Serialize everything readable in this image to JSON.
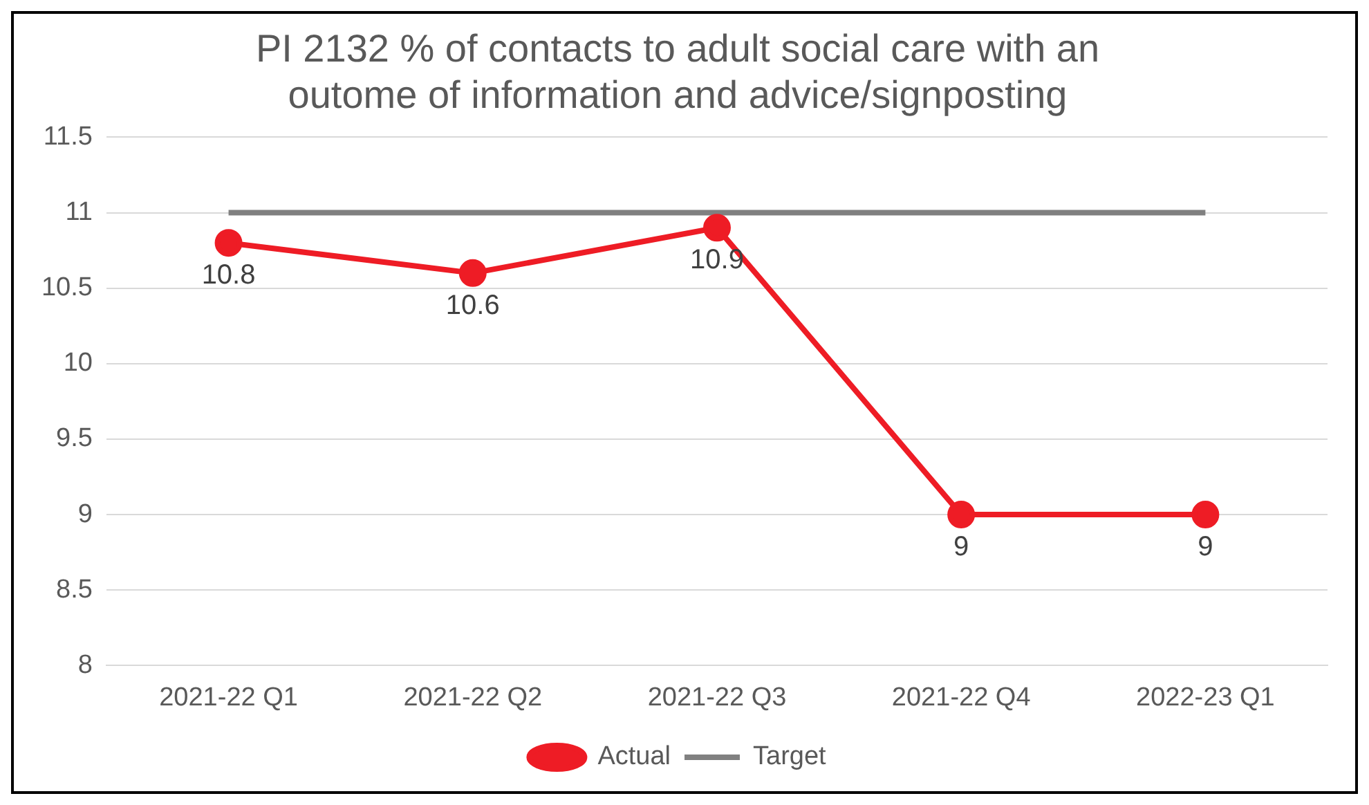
{
  "chart_data": {
    "type": "line",
    "title": "PI 2132 % of contacts to adult social care with an outome of information and advice/signposting",
    "categories": [
      "2021-22 Q1",
      "2021-22 Q2",
      "2021-22 Q3",
      "2021-22 Q4",
      "2022-23 Q1"
    ],
    "series": [
      {
        "name": "Actual",
        "color": "#ee1c25",
        "values": [
          10.8,
          10.6,
          10.9,
          9,
          9
        ],
        "marker": "circle",
        "value_labels": [
          "10.8",
          "10.6",
          "10.9",
          "9",
          "9"
        ]
      },
      {
        "name": "Target",
        "color": "#808080",
        "values": [
          11,
          11,
          11,
          11,
          11
        ],
        "marker": "none"
      }
    ],
    "ylim": [
      8,
      11.5
    ],
    "yticks": [
      8,
      8.5,
      9,
      9.5,
      10,
      10.5,
      11,
      11.5
    ],
    "grid": "y",
    "legend": "bottom"
  }
}
